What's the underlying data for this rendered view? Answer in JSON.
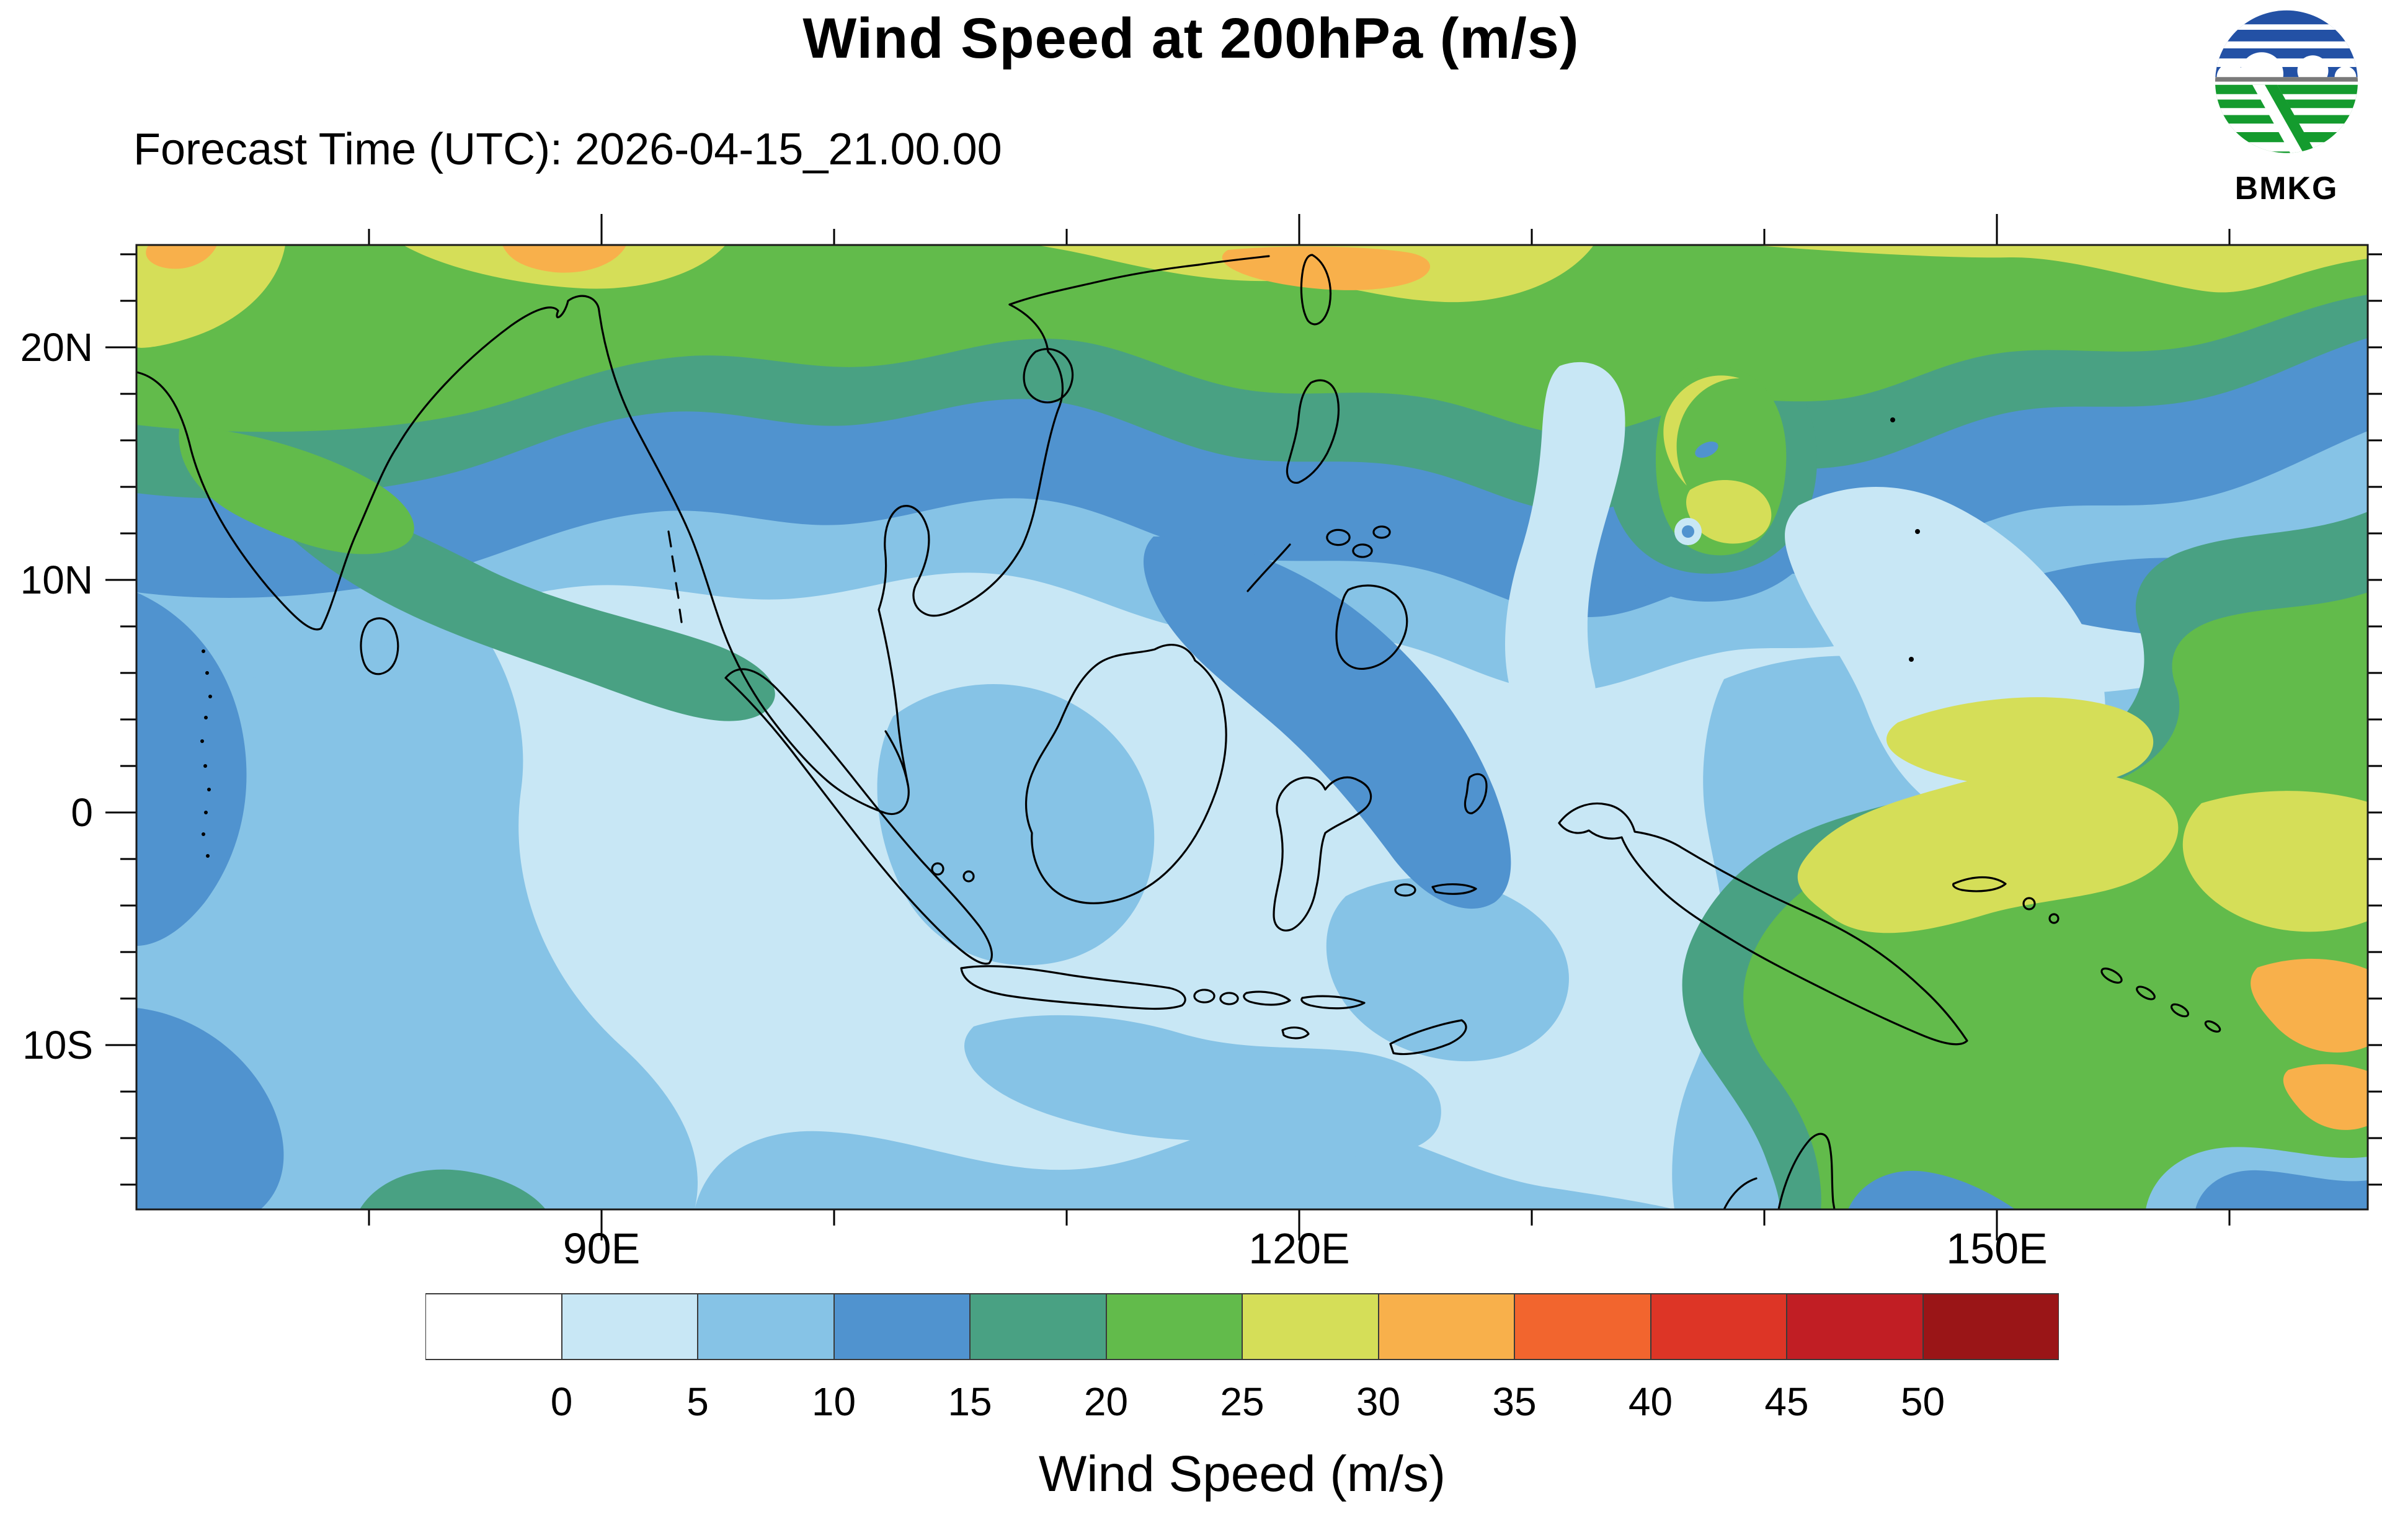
{
  "header": {
    "title": "Wind Speed at 200hPa (m/s)",
    "forecast_time": "Forecast Time (UTC): 2026-04-15_21.00.00",
    "logo_text": "BMKG"
  },
  "map": {
    "y_axis": [
      {
        "label": "20N",
        "lat": 20
      },
      {
        "label": "10N",
        "lat": 10
      },
      {
        "label": "0",
        "lat": 0
      },
      {
        "label": "10S",
        "lat": -10
      }
    ],
    "x_axis": [
      {
        "label": "90E",
        "lon": 90
      },
      {
        "label": "120E",
        "lon": 120
      },
      {
        "label": "150E",
        "lon": 150
      }
    ]
  },
  "legend": {
    "title": "Wind Speed (m/s)",
    "tick_labels": [
      "0",
      "5",
      "10",
      "15",
      "20",
      "25",
      "30",
      "35",
      "40",
      "45",
      "50"
    ],
    "colors": [
      "#ffffff",
      "#c8e7f5",
      "#86c3e6",
      "#5093cf",
      "#49a183",
      "#62bb4b",
      "#d5de58",
      "#f8b04b",
      "#f2652e",
      "#dd3526",
      "#c11e24",
      "#9a1517"
    ]
  },
  "logo_colors": {
    "blue": "#2351a5",
    "green": "#149b2e",
    "gray": "#7a7a7a",
    "text": "#000000"
  },
  "chart_data": {
    "type": "heatmap",
    "subtype": "filled-contour-geographic-map",
    "title": "Wind Speed at 200hPa (m/s)",
    "subtitle": "Forecast Time (UTC): 2026-04-15_21.00.00",
    "units": "m/s",
    "colorbar": {
      "label": "Wind Speed (m/s)",
      "levels": [
        0,
        5,
        10,
        15,
        20,
        25,
        30,
        35,
        40,
        45,
        50
      ],
      "colors": [
        "#ffffff",
        "#c8e7f5",
        "#86c3e6",
        "#5093cf",
        "#49a183",
        "#62bb4b",
        "#d5de58",
        "#f8b04b",
        "#f2652e",
        "#dd3526",
        "#c11e24",
        "#9a1517"
      ]
    },
    "x_axis": {
      "tick_labels": [
        "90E",
        "120E",
        "150E"
      ],
      "minor_tick_step_deg": 10,
      "approx_range_lon": [
        70,
        166
      ]
    },
    "y_axis": {
      "tick_labels": [
        "20N",
        "10N",
        "0",
        "10S"
      ],
      "minor_tick_step_deg": 2,
      "approx_range_lat": [
        -17,
        25
      ]
    },
    "grid": false,
    "legend_position": "bottom",
    "features": [
      {
        "name": "subtropical westerly jet band",
        "where": "along 20N-25N from India across South China to the Pacific",
        "value_range_ms": [
          15,
          30
        ],
        "maxima_ms": [
          30,
          40
        ],
        "maxima_where": "top edge near 75E, 100E and 118E"
      },
      {
        "name": "tropical cyclone vortex",
        "where": "western Pacific near 137E, 15N",
        "ring_value_ms": [
          20,
          30
        ],
        "eye_value_ms": [
          5,
          10
        ]
      },
      {
        "name": "calm equatorial belt",
        "where": "Indian Ocean, Malay Peninsula, Borneo, Java Sea",
        "value_range_ms": [
          0,
          10
        ]
      },
      {
        "name": "easterly wind mass",
        "where": "New Guinea, Banda Sea eastward to map edge",
        "value_range_ms": [
          15,
          30
        ],
        "maxima_ms": [
          30,
          40
        ],
        "maxima_where": "near 165E,10S and 162E,14S"
      },
      {
        "name": "moderate streak",
        "where": "South China Sea from Vietnam toward Borneo",
        "value_range_ms": [
          10,
          15
        ]
      }
    ]
  }
}
